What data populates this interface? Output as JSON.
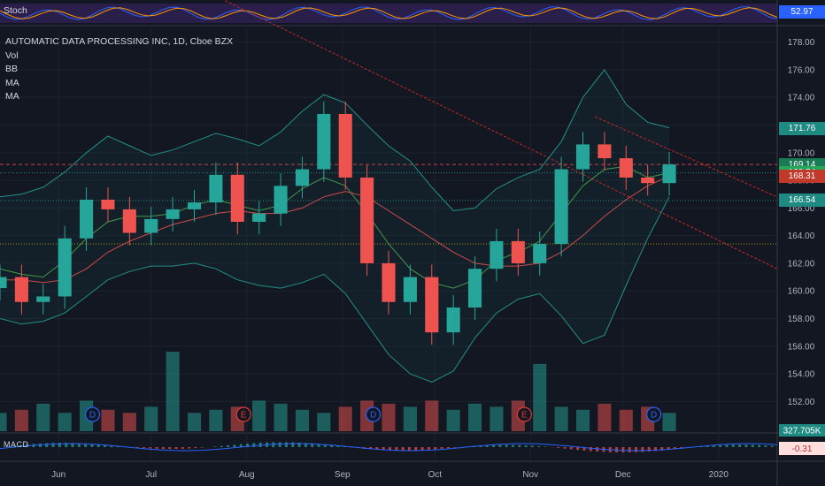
{
  "title": "AUTOMATIC DATA PROCESSING INC, 1D, Cboe BZX",
  "indicators": [
    "Vol",
    "BB",
    "MA",
    "MA"
  ],
  "stoch": {
    "label": "Stoch",
    "value": "52.97"
  },
  "macd": {
    "label": "MACD",
    "value": "-0.31"
  },
  "volume_tag": "327.705K",
  "x_labels": [
    "Jun",
    "Jul",
    "Aug",
    "Sep",
    "Oct",
    "Nov",
    "Dec",
    "2020"
  ],
  "y_labels": [
    "152.00",
    "154.00",
    "156.00",
    "158.00",
    "160.00",
    "162.00",
    "164.00",
    "166.00",
    "168.00",
    "170.00",
    "172.00",
    "174.00",
    "176.00",
    "178.00"
  ],
  "price_tags": [
    {
      "label": "171.76",
      "value": 171.76,
      "color": "#1f8a82"
    },
    {
      "label": "169.15",
      "value": 169.15,
      "color": "#b2333b"
    },
    {
      "label": "169.14",
      "value": 169.14,
      "color": "#1a7a54"
    },
    {
      "label": "168.54",
      "value": 168.54,
      "color": "#26a65b"
    },
    {
      "label": "168.31",
      "value": 168.31,
      "color": "#c0392b"
    },
    {
      "label": "166.54",
      "value": 166.54,
      "color": "#1f8a82"
    }
  ],
  "events": [
    {
      "label": "D",
      "date": "2019-06-12",
      "color": "#2962ff"
    },
    {
      "label": "E",
      "date": "2019-07-31",
      "color": "#e53935"
    },
    {
      "label": "D",
      "date": "2019-09-11",
      "color": "#2962ff"
    },
    {
      "label": "E",
      "date": "2019-10-30",
      "color": "#e53935"
    },
    {
      "label": "D",
      "date": "2019-12-11",
      "color": "#2962ff"
    }
  ],
  "chart_data": {
    "type": "candlestick",
    "ylim": [
      151,
      179
    ],
    "x_range": [
      "2019-05-13",
      "2020-01-20"
    ],
    "colors": {
      "up": "#26a69a",
      "down": "#ef5350"
    },
    "candles": [
      {
        "date": "2019-05-13",
        "open": 160.2,
        "close": 161.0
      },
      {
        "date": "2019-05-20",
        "open": 161.0,
        "close": 159.2
      },
      {
        "date": "2019-05-27",
        "open": 159.2,
        "close": 159.6
      },
      {
        "date": "2019-06-03",
        "open": 159.6,
        "close": 163.8
      },
      {
        "date": "2019-06-10",
        "open": 163.8,
        "close": 166.6
      },
      {
        "date": "2019-06-17",
        "open": 166.6,
        "close": 165.9
      },
      {
        "date": "2019-06-24",
        "open": 165.9,
        "close": 164.2
      },
      {
        "date": "2019-07-01",
        "open": 164.2,
        "close": 165.2
      },
      {
        "date": "2019-07-08",
        "open": 165.2,
        "close": 165.9
      },
      {
        "date": "2019-07-15",
        "open": 165.9,
        "close": 166.4
      },
      {
        "date": "2019-07-22",
        "open": 166.4,
        "close": 168.4
      },
      {
        "date": "2019-07-29",
        "open": 168.4,
        "close": 165.0
      },
      {
        "date": "2019-08-05",
        "open": 165.0,
        "close": 165.6
      },
      {
        "date": "2019-08-12",
        "open": 165.6,
        "close": 167.6
      },
      {
        "date": "2019-08-19",
        "open": 167.6,
        "close": 168.8
      },
      {
        "date": "2019-08-26",
        "open": 168.8,
        "close": 172.8
      },
      {
        "date": "2019-09-02",
        "open": 172.8,
        "close": 168.2
      },
      {
        "date": "2019-09-09",
        "open": 168.2,
        "close": 162.0
      },
      {
        "date": "2019-09-16",
        "open": 162.0,
        "close": 159.2
      },
      {
        "date": "2019-09-23",
        "open": 159.2,
        "close": 161.0
      },
      {
        "date": "2019-09-30",
        "open": 161.0,
        "close": 157.0
      },
      {
        "date": "2019-10-07",
        "open": 157.0,
        "close": 158.8
      },
      {
        "date": "2019-10-14",
        "open": 158.8,
        "close": 161.6
      },
      {
        "date": "2019-10-21",
        "open": 161.6,
        "close": 163.6
      },
      {
        "date": "2019-10-28",
        "open": 163.6,
        "close": 162.0
      },
      {
        "date": "2019-11-04",
        "open": 162.0,
        "close": 163.4
      },
      {
        "date": "2019-11-11",
        "open": 163.4,
        "close": 168.8
      },
      {
        "date": "2019-11-18",
        "open": 168.8,
        "close": 170.6
      },
      {
        "date": "2019-11-25",
        "open": 170.6,
        "close": 169.6
      },
      {
        "date": "2019-12-02",
        "open": 169.6,
        "close": 168.2
      },
      {
        "date": "2019-12-09",
        "open": 168.2,
        "close": 167.8
      },
      {
        "date": "2019-12-16",
        "open": 167.8,
        "close": 169.15
      }
    ],
    "lines": [
      {
        "name": "BB upper",
        "color": "#26a69a",
        "values": [
          166.8,
          167.0,
          167.5,
          168.6,
          170.0,
          171.2,
          170.5,
          169.8,
          170.2,
          170.8,
          171.4,
          171.0,
          170.5,
          171.5,
          173.0,
          174.2,
          173.6,
          172.0,
          170.5,
          169.4,
          167.5,
          165.8,
          166.0,
          167.4,
          168.2,
          168.8,
          170.8,
          174.0,
          176.0,
          173.5,
          172.2,
          171.8
        ]
      },
      {
        "name": "BB lower",
        "color": "#26a69a",
        "values": [
          158.0,
          157.6,
          157.8,
          158.4,
          159.6,
          160.8,
          161.4,
          161.8,
          161.8,
          162.0,
          161.6,
          160.8,
          160.4,
          160.2,
          160.6,
          161.2,
          159.8,
          157.6,
          155.4,
          154.0,
          153.4,
          154.2,
          156.6,
          158.4,
          159.4,
          159.8,
          158.2,
          156.2,
          156.8,
          160.4,
          163.8,
          166.8
        ]
      },
      {
        "name": "MA 20",
        "color": "#4caf50",
        "values": [
          161.6,
          161.2,
          161.0,
          162.2,
          163.8,
          165.0,
          165.4,
          165.4,
          165.6,
          166.2,
          166.6,
          166.2,
          165.8,
          166.2,
          167.4,
          168.2,
          167.6,
          165.6,
          163.4,
          161.6,
          160.6,
          160.2,
          160.8,
          162.2,
          162.8,
          163.6,
          165.6,
          167.6,
          168.8,
          169.0,
          168.2,
          168.54
        ]
      },
      {
        "name": "MA 50",
        "color": "#ef5350",
        "values": [
          160.8,
          160.8,
          160.6,
          160.8,
          161.6,
          162.8,
          163.6,
          164.2,
          164.8,
          165.2,
          165.6,
          165.8,
          165.6,
          165.6,
          166.0,
          166.8,
          167.2,
          166.8,
          165.8,
          164.8,
          163.8,
          162.8,
          162.0,
          161.8,
          161.8,
          162.0,
          162.8,
          164.0,
          165.4,
          166.6,
          167.6,
          168.31
        ]
      }
    ],
    "horizontal_lines": [
      {
        "value": 169.15,
        "color": "#ef5350",
        "style": "dashed"
      },
      {
        "value": 168.54,
        "color": "#26a69a",
        "style": "dotted"
      },
      {
        "value": 166.54,
        "color": "#26a69a",
        "style": "dotted"
      },
      {
        "value": 163.4,
        "color": "#c8b400",
        "style": "dotted"
      }
    ],
    "trendlines": [
      {
        "from": {
          "date": "2019-07-25",
          "value": 181.0
        },
        "to": {
          "date": "2020-01-20",
          "value": 161.6
        },
        "color": "#c62828"
      },
      {
        "from": {
          "date": "2019-11-22",
          "value": 172.6
        },
        "to": {
          "date": "2020-01-20",
          "value": 166.8
        },
        "color": "#c62828"
      }
    ],
    "volume": {
      "values": [
        0.6,
        0.7,
        0.9,
        0.6,
        1.0,
        0.7,
        0.6,
        0.8,
        2.6,
        0.6,
        0.7,
        0.8,
        1.0,
        0.9,
        0.7,
        0.6,
        0.8,
        1.0,
        0.9,
        0.8,
        1.0,
        0.7,
        0.9,
        0.8,
        1.0,
        2.2,
        0.8,
        0.7,
        0.9,
        0.7,
        0.8,
        0.6
      ],
      "current": 327.705
    }
  }
}
